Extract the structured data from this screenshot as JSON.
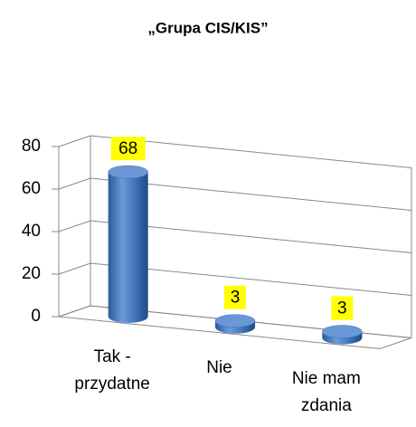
{
  "chart_data": {
    "type": "bar",
    "title": "„Grupa CIS/KIS”",
    "categories": [
      "Tak - przydatne",
      "Nie",
      "Nie mam zdania"
    ],
    "values": [
      68,
      3,
      3
    ],
    "color": "#4a7ec3",
    "ylim": [
      0,
      80
    ],
    "yticks": [
      0,
      20,
      40,
      60,
      80
    ],
    "grid": true
  }
}
